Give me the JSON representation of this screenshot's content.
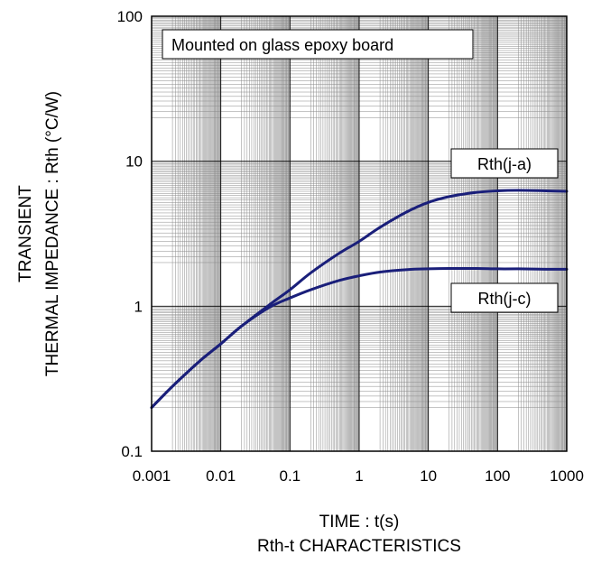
{
  "chart_data": {
    "type": "line",
    "title": "Rth-t CHARACTERISTICS",
    "xlabel": "TIME : t(s)",
    "ylabel_line1": "TRANSIENT",
    "ylabel_line2": "THERMAL IMPEDANCE : Rth (°C/W)",
    "x_scale": "log",
    "y_scale": "log",
    "xlim": [
      0.001,
      1000
    ],
    "ylim": [
      0.1,
      100
    ],
    "x_ticks": [
      "0.001",
      "0.01",
      "0.1",
      "1",
      "10",
      "100",
      "1000"
    ],
    "y_ticks": [
      "0.1",
      "1",
      "10",
      "100"
    ],
    "grid": true,
    "annotation": "Mounted on glass epoxy board",
    "series": [
      {
        "name": "Rth(j-a)",
        "color": "#1a1f7a",
        "x": [
          0.001,
          0.002,
          0.005,
          0.01,
          0.02,
          0.05,
          0.1,
          0.2,
          0.5,
          1,
          2,
          5,
          10,
          20,
          50,
          100,
          200,
          500,
          1000
        ],
        "y": [
          0.2,
          0.28,
          0.42,
          0.55,
          0.73,
          1.02,
          1.3,
          1.7,
          2.3,
          2.8,
          3.5,
          4.5,
          5.2,
          5.7,
          6.1,
          6.25,
          6.3,
          6.25,
          6.2
        ]
      },
      {
        "name": "Rth(j-c)",
        "color": "#1a1f7a",
        "x": [
          0.001,
          0.002,
          0.005,
          0.01,
          0.02,
          0.05,
          0.1,
          0.2,
          0.5,
          1,
          2,
          5,
          10,
          20,
          50,
          100,
          200,
          500,
          1000
        ],
        "y": [
          0.2,
          0.28,
          0.42,
          0.55,
          0.73,
          0.98,
          1.14,
          1.3,
          1.5,
          1.62,
          1.72,
          1.79,
          1.81,
          1.82,
          1.82,
          1.81,
          1.81,
          1.8,
          1.8
        ]
      }
    ]
  }
}
